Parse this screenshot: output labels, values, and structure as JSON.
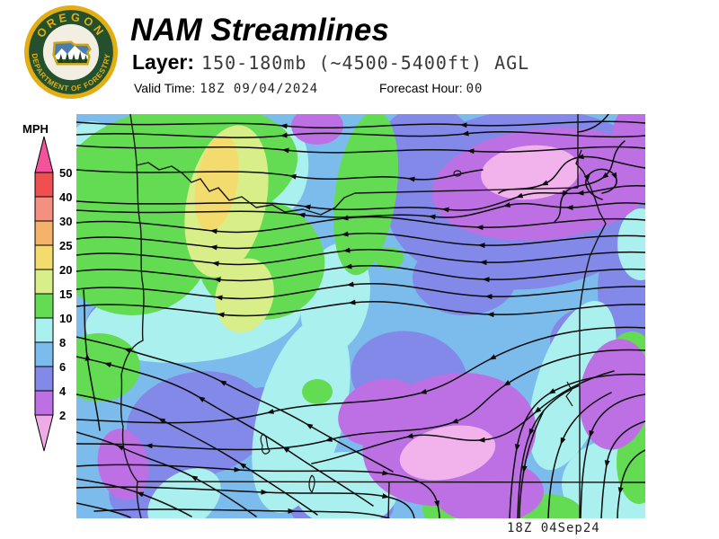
{
  "header": {
    "title": "NAM Streamlines",
    "layer_label": "Layer:",
    "layer_value": "150-180mb (~4500-5400ft) AGL",
    "valid_time_label": "Valid Time:",
    "valid_time_value": "18Z 09/04/2024",
    "forecast_hour_label": "Forecast Hour:",
    "forecast_hour_value": "00"
  },
  "logo": {
    "top_text": "OREGON",
    "bottom_text": "DEPARTMENT OF FORESTRY",
    "gold": "#e2ae13",
    "green": "#24502e"
  },
  "legend": {
    "title": "MPH",
    "tick_values": [
      "50",
      "40",
      "30",
      "25",
      "20",
      "15",
      "10",
      "8",
      "6",
      "4",
      "2"
    ],
    "segment_colors": [
      "#ef4f4f",
      "#f4907f",
      "#f4b369",
      "#f4db6d",
      "#d8ee88",
      "#63dc53",
      "#aaf0ee",
      "#7cbcec",
      "#8389e8",
      "#bd70e3"
    ],
    "above_max_color": "#f2539b",
    "below_min_color": "#efabe6"
  },
  "map": {
    "timestamp": "18Z 04Sep24",
    "base_color": "#7cbcec",
    "line_color": "#0b0b0b",
    "border_color": "#151515",
    "blobs": [
      {
        "c": "#8389e8",
        "e": [
          500,
          95,
          155,
          100,
          -5
        ]
      },
      {
        "c": "#8389e8",
        "e": [
          390,
          55,
          60,
          65,
          0
        ]
      },
      {
        "c": "#8389e8",
        "e": [
          622,
          195,
          42,
          75,
          0
        ]
      },
      {
        "c": "#8389e8",
        "e": [
          370,
          292,
          65,
          50,
          10
        ]
      },
      {
        "c": "#8389e8",
        "e": [
          135,
          345,
          80,
          58,
          -10
        ]
      },
      {
        "c": "#8389e8",
        "e": [
          100,
          398,
          72,
          42,
          -35
        ]
      },
      {
        "c": "#8389e8",
        "e": [
          295,
          437,
          58,
          30,
          0
        ]
      },
      {
        "c": "#8389e8",
        "e": [
          45,
          235,
          34,
          30,
          0
        ]
      },
      {
        "c": "#8389e8",
        "e": [
          432,
          182,
          58,
          42,
          0
        ]
      },
      {
        "c": "#8389e8",
        "e": [
          575,
          252,
          48,
          38,
          0
        ]
      },
      {
        "c": "#8389e8",
        "e": [
          205,
          340,
          45,
          35,
          -20
        ]
      },
      {
        "c": "#aaf0ee",
        "e": [
          18,
          48,
          32,
          40,
          0
        ]
      },
      {
        "c": "#aaf0ee",
        "e": [
          28,
          118,
          24,
          58,
          0
        ]
      },
      {
        "c": "#aaf0ee",
        "e": [
          130,
          228,
          120,
          48,
          -5
        ]
      },
      {
        "c": "#aaf0ee",
        "e": [
          250,
          335,
          48,
          112,
          15
        ]
      },
      {
        "c": "#aaf0ee",
        "e": [
          288,
          205,
          38,
          62,
          10
        ]
      },
      {
        "c": "#aaf0ee",
        "e": [
          300,
          418,
          58,
          42,
          0
        ]
      },
      {
        "c": "#aaf0ee",
        "e": [
          552,
          302,
          40,
          98,
          18
        ]
      },
      {
        "c": "#aaf0ee",
        "e": [
          602,
          412,
          62,
          50,
          0
        ]
      },
      {
        "c": "#aaf0ee",
        "e": [
          232,
          62,
          26,
          48,
          5
        ]
      },
      {
        "c": "#aaf0ee",
        "e": [
          628,
          145,
          26,
          40,
          0
        ]
      },
      {
        "c": "#aaf0ee",
        "e": [
          120,
          430,
          45,
          30,
          -35
        ]
      },
      {
        "c": "#63dc53",
        "e": [
          115,
          62,
          132,
          72,
          -8
        ]
      },
      {
        "c": "#63dc53",
        "e": [
          62,
          142,
          88,
          82,
          0
        ]
      },
      {
        "c": "#63dc53",
        "e": [
          205,
          162,
          72,
          66,
          20
        ]
      },
      {
        "c": "#63dc53",
        "e": [
          322,
          88,
          34,
          92,
          8
        ]
      },
      {
        "c": "#63dc53",
        "e": [
          25,
          282,
          46,
          38,
          0
        ]
      },
      {
        "c": "#63dc53",
        "e": [
          435,
          440,
          50,
          26,
          0
        ]
      },
      {
        "c": "#63dc53",
        "e": [
          522,
          443,
          40,
          20,
          0
        ]
      },
      {
        "c": "#63dc53",
        "e": [
          618,
          274,
          26,
          32,
          0
        ]
      },
      {
        "c": "#63dc53",
        "e": [
          626,
          388,
          25,
          46,
          0
        ]
      },
      {
        "c": "#63dc53",
        "e": [
          268,
          309,
          17,
          14,
          0
        ]
      },
      {
        "c": "#63dc53",
        "e": [
          348,
          160,
          16,
          12,
          0
        ]
      },
      {
        "c": "#d8ee88",
        "e": [
          167,
          97,
          44,
          86,
          12
        ]
      },
      {
        "c": "#d8ee88",
        "e": [
          187,
          202,
          32,
          42,
          15
        ]
      },
      {
        "c": "#f4db6d",
        "e": [
          156,
          77,
          23,
          54,
          10
        ]
      },
      {
        "c": "#bd70e3",
        "e": [
          520,
          78,
          125,
          62,
          -6
        ]
      },
      {
        "c": "#bd70e3",
        "e": [
          268,
          13,
          29,
          21,
          0
        ]
      },
      {
        "c": "#bd70e3",
        "e": [
          626,
          20,
          29,
          32,
          0
        ]
      },
      {
        "c": "#bd70e3",
        "e": [
          415,
          362,
          98,
          72,
          -15
        ]
      },
      {
        "c": "#bd70e3",
        "e": [
          338,
          332,
          48,
          36,
          -20
        ]
      },
      {
        "c": "#bd70e3",
        "e": [
          52,
          390,
          28,
          40,
          -10
        ]
      },
      {
        "c": "#bd70e3",
        "e": [
          600,
          312,
          40,
          62,
          8
        ]
      },
      {
        "c": "#bd70e3",
        "e": [
          458,
          420,
          62,
          36,
          0
        ]
      },
      {
        "c": "#f2b2ec",
        "e": [
          505,
          65,
          55,
          30,
          -5
        ]
      },
      {
        "c": "#f2b2ec",
        "e": [
          413,
          377,
          54,
          29,
          -12
        ]
      }
    ],
    "streamlines": [
      "M633,10 C560,4 500,16 430,12 C360,8 300,20 230,13 C160,6 90,16 0,9",
      "M633,24 C562,30 500,14 432,22 C360,30 300,16 230,24 C160,31 90,18 0,23",
      "M633,38 C570,32 508,46 438,41 C362,36 302,48 232,40 C162,32 92,42 0,35",
      "M592,0 C584,11 573,18 558,20",
      "M633,60 C600,55 580,45 560,48 C535,52 540,70 520,78 C498,87 480,80 470,88",
      "M610,30 C592,45 602,58 587,70 C570,83 550,76 542,90 C535,102 543,110 532,120",
      "M585,95 C570,90 562,78 570,68 C578,58 595,60 600,70 C604,79 596,86 585,88",
      "M452,62 C420,66 402,76 372,72 C322,65 296,78 240,69 C170,58 100,70 0,62",
      "M633,80 C602,78 586,86 560,88 C535,90 516,84 492,92 C462,102 448,110 410,106 C350,99 316,112 256,103 C186,93 110,105 0,97",
      "M633,100 C595,96 575,104 548,104 C520,104 505,96 478,102 C448,109 430,118 395,114 C340,108 310,120 250,112 C180,103 110,114 0,107",
      "M633,118 C560,112 505,128 448,126 C390,124 358,110 298,116 C242,122 208,136 152,130 C96,124 46,116 0,121",
      "M633,136 C565,132 510,148 450,146 C390,144 358,128 298,134 C242,140 208,154 152,148 C96,142 46,133 0,139",
      "M633,154 C568,151 512,167 452,165 C392,163 360,146 300,152 C244,158 210,172 154,166 C98,160 48,151 0,157",
      "M633,173 C570,170 515,186 455,184 C395,182 362,164 302,170 C246,176 212,190 156,184 C100,178 50,169 0,175",
      "M633,192 C572,190 518,205 458,203 C398,201 364,184 304,190 C248,196 214,210 158,204 C102,198 52,189 0,195",
      "M633,212 C575,210 520,225 460,223 C400,221 366,204 306,210 C250,216 216,229 160,223 C104,217 54,208 0,214",
      "M633,238 C560,234 505,250 462,272 C430,288 420,300 385,310 C330,325 270,318 215,332 C150,348 80,344 0,340",
      "M633,263 C565,259 515,277 478,301 C452,318 448,333 420,343 C380,357 330,349 280,363 C220,379 150,373 80,369 C50,367 20,367 0,367",
      "M598,286 C562,296 536,311 512,331 C492,348 478,361 450,363 C420,365 400,353 370,359 C332,367 302,381 262,389",
      "M633,290 C590,288 555,295 528,310 C505,323 495,345 490,372 C485,400 483,425 482,450",
      "M560,302 C535,312 515,330 505,355 C495,380 492,415 491,450",
      "M595,310 C570,322 550,340 540,365 C530,390 526,420 525,450",
      "M633,312 C600,317 580,332 572,357 C564,382 562,412 561,450",
      "M633,342 C608,350 594,366 590,390 C586,414 585,432 584,450",
      "M633,374 C616,382 608,398 605,420 C602,438 602,446 602,450",
      "M520,330 C510,350 502,372 498,396 C494,420 493,436 493,450",
      "M0,392 C60,388 120,392 180,396 C240,400 300,394 345,400 C382,405 398,415 402,435 C404,444 404,447 404,450",
      "M0,416 C70,413 140,418 210,421 C268,424 310,419 345,426 C365,430 374,438 376,450",
      "M20,442 C80,438 160,441 240,442 C295,443 322,442 348,450",
      "M352,398 C320,380 292,366 258,346 C226,327 196,316 162,298 C128,280 92,274 56,262 C36,256 16,252 0,248",
      "M330,436 C295,412 265,395 232,372 C200,350 170,336 138,316 C106,296 70,288 34,278 C20,274 8,272 0,270",
      "M268,446 C240,426 214,410 184,390 C154,370 124,356 94,340 C64,324 30,318 0,312",
      "M200,448 C178,432 156,418 130,404 C104,390 72,382 48,370 C28,361 12,358 0,354",
      "M128,448 C110,438 92,430 70,422 C48,414 24,410 0,406",
      "M60,449 C46,443 28,439 0,433",
      "M26,352 C22,322 16,300 12,270 C8,240 10,220 8,196"
    ],
    "borders": [
      "M60,0 C62,15 66,35 67,57 C69,80 67,100 71,122 C74,145 70,168 74,190 C77,212 72,232 74,252 C60,258 54,272 50,290 C52,310 47,328 52,348 C50,368 55,385 60,396 C63,403 66,406 68,409 C66,424 69,438 72,450",
      "M67,57 L80,54 L92,62 L106,58 L118,66 L128,76 L138,72 L148,86 L158,82 L170,96 L184,92 L200,104 L218,101 L232,109 L252,106 L272,112 L288,104 L298,93 L310,88 L558,82",
      "M558,0 L558,82",
      "M562,40 L556,55 L564,64 L571,79 L577,94 L582,109 L589,122 L580,139 L571,159 L566,179 L562,203 L560,218 L560,410",
      "M560,410 L560,450",
      "M68,409 L633,410",
      "M348,410 L347,450"
    ],
    "lakes": [
      "M208,356 C214,360 210,368 215,375 C211,381 205,378 207,369 C204,362 205,358 208,356",
      "M262,402 C267,406 265,414 262,421 C258,417 258,408 262,402",
      "M420,66 a4,3 0 1 0 8,0 a4,3 0 1 0 -8,0",
      "M546,298 l5,9 l-6,7 l7,11"
    ]
  }
}
